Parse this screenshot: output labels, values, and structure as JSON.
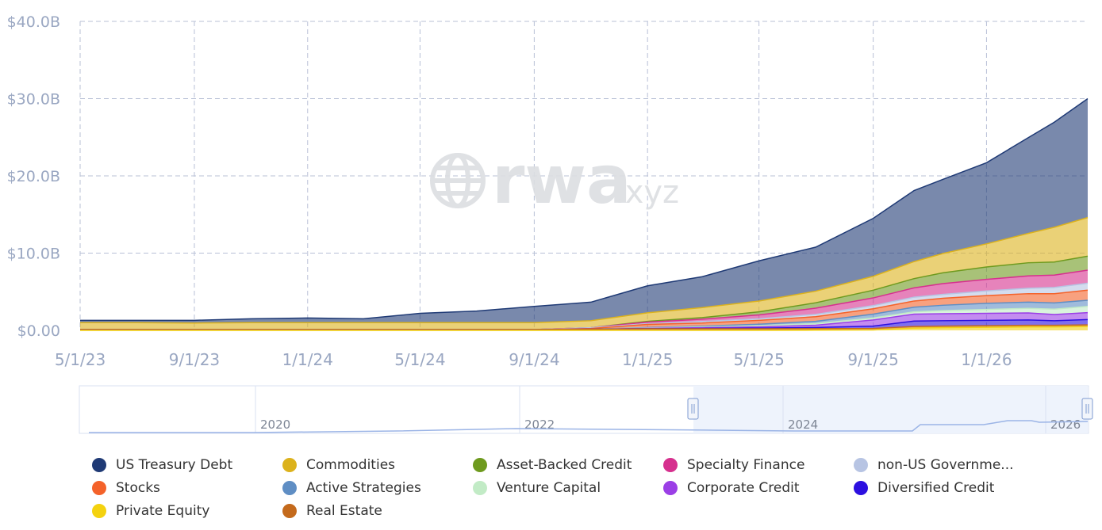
{
  "chart_data": {
    "type": "area",
    "stacked": true,
    "y_unit": "USD billions",
    "ylim": [
      0,
      40
    ],
    "yticks": [
      "$0.00",
      "$10.0B",
      "$20.0B",
      "$30.0B",
      "$40.0B"
    ],
    "xticks": [
      "5/1/23",
      "9/1/23",
      "1/1/24",
      "5/1/24",
      "9/1/24",
      "1/1/25",
      "5/1/25",
      "9/1/25",
      "1/1/26"
    ],
    "x_range": [
      "2023-05-01",
      "2026-04-20"
    ],
    "grid": true,
    "legend_position": "bottom",
    "x": [
      "2023-05-01",
      "2023-07-01",
      "2023-09-01",
      "2023-11-01",
      "2024-01-01",
      "2024-03-01",
      "2024-05-01",
      "2024-07-01",
      "2024-09-01",
      "2024-11-01",
      "2025-01-01",
      "2025-03-01",
      "2025-05-01",
      "2025-07-01",
      "2025-09-01",
      "2025-10-15",
      "2025-11-15",
      "2026-01-01",
      "2026-02-15",
      "2026-03-15",
      "2026-04-20"
    ],
    "series": [
      {
        "name": "Private Equity",
        "color": "#f4d20f",
        "values": [
          0,
          0,
          0,
          0,
          0,
          0,
          0,
          0,
          0,
          0,
          0,
          0,
          0,
          0.02,
          0.05,
          0.3,
          0.35,
          0.4,
          0.45,
          0.45,
          0.5
        ]
      },
      {
        "name": "Real Estate",
        "color": "#c46a1c",
        "values": [
          0.1,
          0.1,
          0.1,
          0.1,
          0.1,
          0.1,
          0.1,
          0.1,
          0.1,
          0.15,
          0.2,
          0.2,
          0.2,
          0.2,
          0.2,
          0.2,
          0.2,
          0.2,
          0.2,
          0.2,
          0.2
        ]
      },
      {
        "name": "Diversified Credit",
        "color": "#2c0fe0",
        "values": [
          0,
          0,
          0,
          0,
          0,
          0,
          0,
          0,
          0,
          0,
          0.02,
          0.05,
          0.1,
          0.15,
          0.3,
          0.7,
          0.7,
          0.7,
          0.7,
          0.6,
          0.7
        ]
      },
      {
        "name": "Corporate Credit",
        "color": "#9b3fe6",
        "values": [
          0,
          0,
          0,
          0,
          0,
          0,
          0,
          0,
          0,
          0,
          0.05,
          0.1,
          0.15,
          0.3,
          0.8,
          0.9,
          0.9,
          0.9,
          0.9,
          0.8,
          0.9
        ]
      },
      {
        "name": "Venture Capital",
        "color": "#c2ebc6",
        "values": [
          0,
          0,
          0,
          0,
          0,
          0,
          0,
          0,
          0,
          0,
          0.05,
          0.1,
          0.15,
          0.2,
          0.25,
          0.3,
          0.4,
          0.5,
          0.6,
          0.7,
          0.8
        ]
      },
      {
        "name": "Active Strategies",
        "color": "#5f8ec4",
        "values": [
          0,
          0,
          0,
          0,
          0,
          0,
          0,
          0,
          0,
          0,
          0.05,
          0.1,
          0.2,
          0.3,
          0.5,
          0.6,
          0.7,
          0.8,
          0.8,
          0.8,
          0.8
        ]
      },
      {
        "name": "Stocks",
        "color": "#f4622a",
        "values": [
          0,
          0,
          0,
          0,
          0,
          0,
          0,
          0,
          0,
          0.1,
          0.4,
          0.4,
          0.5,
          0.6,
          0.7,
          0.8,
          0.9,
          1.0,
          1.1,
          1.2,
          1.3
        ]
      },
      {
        "name": "non-US Government Debt",
        "color": "#b7c4e3",
        "values": [
          0,
          0,
          0,
          0,
          0,
          0,
          0,
          0,
          0,
          0.1,
          0.1,
          0.2,
          0.2,
          0.3,
          0.4,
          0.5,
          0.5,
          0.6,
          0.7,
          0.8,
          0.9
        ]
      },
      {
        "name": "Specialty Finance",
        "color": "#d6308e",
        "values": [
          0,
          0,
          0,
          0,
          0,
          0,
          0,
          0,
          0,
          0,
          0.2,
          0.3,
          0.5,
          0.8,
          1.0,
          1.2,
          1.4,
          1.5,
          1.6,
          1.6,
          1.7
        ]
      },
      {
        "name": "Asset-Backed Credit",
        "color": "#6e9a1e",
        "values": [
          0,
          0,
          0,
          0,
          0,
          0,
          0,
          0,
          0,
          0,
          0.1,
          0.2,
          0.4,
          0.7,
          1.0,
          1.2,
          1.4,
          1.6,
          1.7,
          1.7,
          1.8
        ]
      },
      {
        "name": "Commodities",
        "color": "#dcb21c",
        "values": [
          0.9,
          0.9,
          0.85,
          0.9,
          0.9,
          0.9,
          0.9,
          0.9,
          0.9,
          0.9,
          1.1,
          1.3,
          1.4,
          1.5,
          1.8,
          2.2,
          2.5,
          3.0,
          3.8,
          4.5,
          5.0
        ]
      },
      {
        "name": "US Treasury Debt",
        "color": "#1f3a75",
        "values": [
          0.3,
          0.3,
          0.35,
          0.5,
          0.6,
          0.5,
          1.2,
          1.5,
          2.1,
          2.4,
          3.5,
          4.0,
          5.2,
          5.7,
          7.5,
          9.2,
          9.6,
          10.5,
          12.4,
          13.6,
          15.4
        ]
      }
    ]
  },
  "navigator": {
    "labels": [
      "2020",
      "2022",
      "2024",
      "2026"
    ]
  },
  "watermark": {
    "brand": "rwa",
    "suffix": ".xyz"
  },
  "legend": [
    {
      "label": "US Treasury Debt",
      "color": "#1f3a75"
    },
    {
      "label": "Commodities",
      "color": "#dcb21c"
    },
    {
      "label": "Asset-Backed Credit",
      "color": "#6e9a1e"
    },
    {
      "label": "Specialty Finance",
      "color": "#d6308e"
    },
    {
      "label": "non-US Governme...",
      "color": "#b7c4e3"
    },
    {
      "label": "Stocks",
      "color": "#f4622a"
    },
    {
      "label": "Active Strategies",
      "color": "#5f8ec4"
    },
    {
      "label": "Venture Capital",
      "color": "#c2ebc6"
    },
    {
      "label": "Corporate Credit",
      "color": "#9b3fe6"
    },
    {
      "label": "Diversified Credit",
      "color": "#2c0fe0"
    },
    {
      "label": "Private Equity",
      "color": "#f4d20f"
    },
    {
      "label": "Real Estate",
      "color": "#c46a1c"
    }
  ]
}
